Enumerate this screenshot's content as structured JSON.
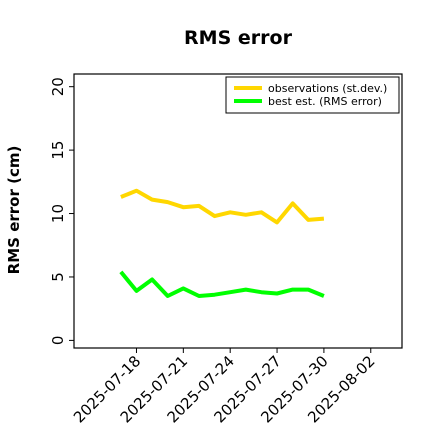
{
  "chart_data": {
    "type": "line",
    "title": "RMS error",
    "xlabel": "",
    "ylabel": "RMS error (cm)",
    "x": [
      "2025-07-17",
      "2025-07-18",
      "2025-07-19",
      "2025-07-20",
      "2025-07-21",
      "2025-07-22",
      "2025-07-23",
      "2025-07-24",
      "2025-07-25",
      "2025-07-26",
      "2025-07-27",
      "2025-07-28",
      "2025-07-29",
      "2025-07-30"
    ],
    "series": [
      {
        "name": "observations (st.dev.)",
        "color": "#ffd700",
        "values": [
          11.3,
          11.8,
          11.1,
          10.9,
          10.5,
          10.6,
          9.8,
          10.1,
          9.9,
          10.1,
          9.3,
          10.8,
          9.5,
          9.6
        ]
      },
      {
        "name": "best est. (RMS error)",
        "color": "#00ff00",
        "values": [
          5.4,
          3.9,
          4.8,
          3.5,
          4.1,
          3.5,
          3.6,
          3.8,
          4.0,
          3.8,
          3.7,
          4.0,
          4.0,
          3.5
        ]
      }
    ],
    "xlim": [
      "2025-07-14",
      "2025-08-04"
    ],
    "ylim": [
      -0.6,
      21
    ],
    "xticks": [
      "2025-07-18",
      "2025-07-21",
      "2025-07-24",
      "2025-07-27",
      "2025-07-30",
      "2025-08-02"
    ],
    "xtick_colors": [
      "#000000",
      "#000000",
      "#228b22",
      "#000000",
      "#000000",
      "#000000"
    ],
    "yticks": [
      0,
      5,
      10,
      15,
      20
    ],
    "grid": false,
    "legend_position": "top-right"
  }
}
